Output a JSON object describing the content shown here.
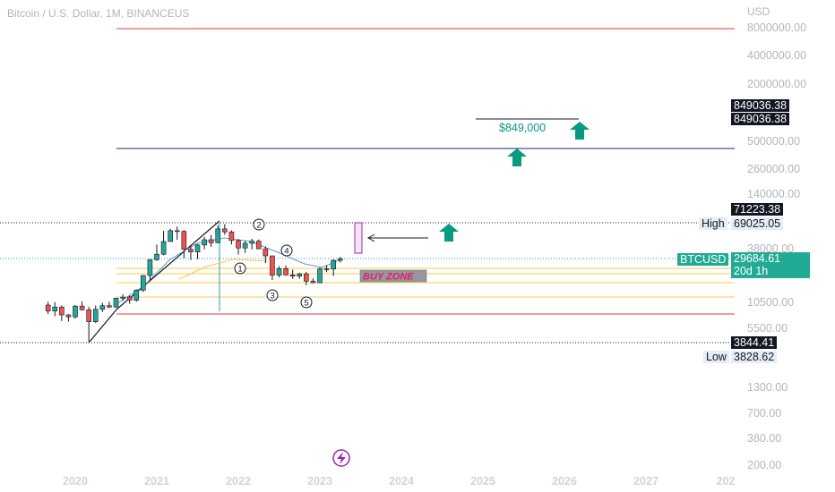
{
  "header": {
    "symbol_title": "Bitcoin / U.S. Dollar, 1M, BINANCEUS",
    "currency": "USD"
  },
  "price_axis": {
    "ticks": [
      "8000000.00",
      "4000000.00",
      "2000000.00",
      "500000.00",
      "260000.00",
      "140000.00",
      "38000.00",
      "10500.00",
      "5500.00",
      "1300.00",
      "700.00",
      "380.00",
      "200.00"
    ]
  },
  "time_axis": {
    "labels": [
      "2020",
      "2021",
      "2022",
      "2023",
      "2024",
      "2025",
      "2026",
      "2027",
      "202"
    ]
  },
  "badges": {
    "target_top": "849036.38",
    "target_bottom": "849036.38",
    "high_marker": "71223.38",
    "high_label": "High",
    "high_value": "69025.05",
    "symbol": "BTCUSD",
    "last_price": "29684.61",
    "countdown": "20d 1h",
    "low_marker": "3844.41",
    "low_label": "Low",
    "low_value": "3828.62"
  },
  "annotations": {
    "target_text": "$849,000",
    "buy_zone": "BUY ZONE",
    "wave_labels": [
      "1",
      "2",
      "3",
      "4",
      "5"
    ]
  },
  "colors": {
    "bull": "#26a69a",
    "bear": "#ef5350",
    "target_text": "#089981",
    "arrow": "#089981",
    "buy_zone_text": "#e91e63",
    "buy_zone_fill": "#9598a1",
    "red_line": "#e53935",
    "navy_line": "#1a237e",
    "yellow_line": "#f9cb4c",
    "teal_dotted": "#26a69a",
    "ma_line": "#5b9bd5",
    "wave_line": "#131722"
  },
  "chart_data": {
    "type": "candlestick",
    "title": "Bitcoin / U.S. Dollar, 1M, BINANCEUS",
    "yscale": "log",
    "yunit": "USD",
    "x_labels": [
      "2020",
      "2021",
      "2022",
      "2023",
      "2024",
      "2025",
      "2026",
      "2027"
    ],
    "last_price": 29684.61,
    "high": 69025.05,
    "low": 3828.62,
    "target": 849036.38,
    "candles": [
      {
        "t": "2019-09",
        "o": 9600,
        "h": 10400,
        "l": 7700,
        "c": 8300
      },
      {
        "t": "2019-10",
        "o": 8300,
        "h": 10300,
        "l": 7300,
        "c": 9150
      },
      {
        "t": "2019-11",
        "o": 9150,
        "h": 9500,
        "l": 6500,
        "c": 7550
      },
      {
        "t": "2019-12",
        "o": 7550,
        "h": 7700,
        "l": 6400,
        "c": 7200
      },
      {
        "t": "2020-01",
        "o": 7200,
        "h": 9600,
        "l": 6900,
        "c": 9350
      },
      {
        "t": "2020-02",
        "o": 9350,
        "h": 10500,
        "l": 8400,
        "c": 8550
      },
      {
        "t": "2020-03",
        "o": 8550,
        "h": 9200,
        "l": 3828.62,
        "c": 6400
      },
      {
        "t": "2020-04",
        "o": 6400,
        "h": 9500,
        "l": 6200,
        "c": 8650
      },
      {
        "t": "2020-05",
        "o": 8650,
        "h": 10100,
        "l": 8100,
        "c": 9450
      },
      {
        "t": "2020-06",
        "o": 9450,
        "h": 10400,
        "l": 8900,
        "c": 9150
      },
      {
        "t": "2020-07",
        "o": 9150,
        "h": 11500,
        "l": 9000,
        "c": 11350
      },
      {
        "t": "2020-08",
        "o": 11350,
        "h": 12500,
        "l": 10600,
        "c": 11650
      },
      {
        "t": "2020-09",
        "o": 11650,
        "h": 12100,
        "l": 9900,
        "c": 10800
      },
      {
        "t": "2020-10",
        "o": 10800,
        "h": 14100,
        "l": 10400,
        "c": 13800
      },
      {
        "t": "2020-11",
        "o": 13800,
        "h": 19900,
        "l": 13200,
        "c": 19700
      },
      {
        "t": "2020-12",
        "o": 19700,
        "h": 29300,
        "l": 17600,
        "c": 29000
      },
      {
        "t": "2021-01",
        "o": 29000,
        "h": 41900,
        "l": 28100,
        "c": 33100
      },
      {
        "t": "2021-02",
        "o": 33100,
        "h": 58400,
        "l": 32300,
        "c": 45100
      },
      {
        "t": "2021-03",
        "o": 45100,
        "h": 61700,
        "l": 45000,
        "c": 58700
      },
      {
        "t": "2021-04",
        "o": 58700,
        "h": 64900,
        "l": 47000,
        "c": 57700
      },
      {
        "t": "2021-05",
        "o": 57700,
        "h": 59500,
        "l": 30000,
        "c": 37300
      },
      {
        "t": "2021-06",
        "o": 37300,
        "h": 41300,
        "l": 28800,
        "c": 35000
      },
      {
        "t": "2021-07",
        "o": 35000,
        "h": 42300,
        "l": 29300,
        "c": 41500
      },
      {
        "t": "2021-08",
        "o": 41500,
        "h": 50500,
        "l": 37300,
        "c": 47100
      },
      {
        "t": "2021-09",
        "o": 47100,
        "h": 52900,
        "l": 39600,
        "c": 43800
      },
      {
        "t": "2021-10",
        "o": 43800,
        "h": 67000,
        "l": 43300,
        "c": 61300
      },
      {
        "t": "2021-11",
        "o": 61300,
        "h": 69025.05,
        "l": 53200,
        "c": 57000
      },
      {
        "t": "2021-12",
        "o": 57000,
        "h": 59100,
        "l": 42000,
        "c": 46200
      },
      {
        "t": "2022-01",
        "o": 46200,
        "h": 47900,
        "l": 32900,
        "c": 38500
      },
      {
        "t": "2022-02",
        "o": 38500,
        "h": 45800,
        "l": 34300,
        "c": 43200
      },
      {
        "t": "2022-03",
        "o": 43200,
        "h": 48200,
        "l": 37200,
        "c": 45500
      },
      {
        "t": "2022-04",
        "o": 45500,
        "h": 47400,
        "l": 37700,
        "c": 37700
      },
      {
        "t": "2022-05",
        "o": 37700,
        "h": 40000,
        "l": 26700,
        "c": 31800
      },
      {
        "t": "2022-06",
        "o": 31800,
        "h": 31900,
        "l": 17600,
        "c": 19900
      },
      {
        "t": "2022-07",
        "o": 19900,
        "h": 24700,
        "l": 18800,
        "c": 23300
      },
      {
        "t": "2022-08",
        "o": 23300,
        "h": 25200,
        "l": 19600,
        "c": 20000
      },
      {
        "t": "2022-09",
        "o": 20000,
        "h": 22800,
        "l": 18200,
        "c": 19400
      },
      {
        "t": "2022-10",
        "o": 19400,
        "h": 21100,
        "l": 18200,
        "c": 20500
      },
      {
        "t": "2022-11",
        "o": 20500,
        "h": 21500,
        "l": 15500,
        "c": 17200
      },
      {
        "t": "2022-12",
        "o": 17200,
        "h": 18400,
        "l": 16300,
        "c": 16500
      },
      {
        "t": "2023-01",
        "o": 16500,
        "h": 23900,
        "l": 16500,
        "c": 23100
      },
      {
        "t": "2023-02",
        "o": 23100,
        "h": 25300,
        "l": 21400,
        "c": 23100
      },
      {
        "t": "2023-03",
        "o": 23100,
        "h": 29200,
        "l": 19500,
        "c": 28500
      },
      {
        "t": "2023-04",
        "o": 28500,
        "h": 31000,
        "l": 27000,
        "c": 29684.61
      }
    ],
    "horizontal_lines": [
      {
        "price": 8600000,
        "color": "red"
      },
      {
        "price": 520000,
        "color": "navy"
      },
      {
        "price": 71223.38,
        "style": "dotted"
      },
      {
        "price": 29684.61,
        "style": "dotted",
        "color": "teal"
      },
      {
        "price": 3844.41,
        "style": "dotted"
      },
      {
        "price": 6800,
        "color": "red"
      },
      {
        "price": 24500,
        "color": "yellow"
      },
      {
        "price": 20500,
        "color": "yellow"
      },
      {
        "price": 16500,
        "color": "yellow"
      },
      {
        "price": 11500,
        "color": "yellow"
      }
    ]
  }
}
